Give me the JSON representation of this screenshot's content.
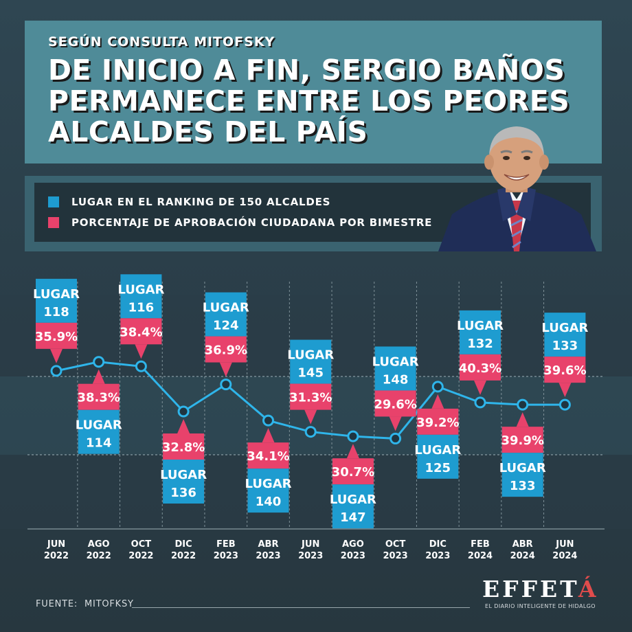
{
  "header": {
    "kicker": "SEGÚN CONSULTA MITOFSKY",
    "headline_lines": [
      "DE INICIO A FIN, SERGIO BAÑOS",
      "PERMANECE ENTRE LOS PEORES",
      "ALCALDES DEL PAÍS"
    ]
  },
  "legend": {
    "items": [
      {
        "label": "LUGAR EN EL RANKING DE 150 ALCALDES",
        "color": "#1e9cd0"
      },
      {
        "label": "PORCENTAJE DE APROBACIÓN CIUDADANA POR BIMESTRE",
        "color": "#e8426b"
      }
    ]
  },
  "colors": {
    "ranking": "#1e9cd0",
    "approval": "#e8426b",
    "line": "#2fb5ea",
    "background": "#2d424d"
  },
  "chart_data": {
    "type": "line",
    "rank_prefix": "LUGAR",
    "categories": [
      {
        "month": "JUN",
        "year": "2022"
      },
      {
        "month": "AGO",
        "year": "2022"
      },
      {
        "month": "OCT",
        "year": "2022"
      },
      {
        "month": "DIC",
        "year": "2022"
      },
      {
        "month": "FEB",
        "year": "2023"
      },
      {
        "month": "ABR",
        "year": "2023"
      },
      {
        "month": "JUN",
        "year": "2023"
      },
      {
        "month": "AGO",
        "year": "2023"
      },
      {
        "month": "OCT",
        "year": "2023"
      },
      {
        "month": "DIC",
        "year": "2023"
      },
      {
        "month": "FEB",
        "year": "2024"
      },
      {
        "month": "ABR",
        "year": "2024"
      },
      {
        "month": "JUN",
        "year": "2024"
      }
    ],
    "series": [
      {
        "name": "LUGAR EN EL RANKING DE 150 ALCALDES",
        "values": [
          118,
          114,
          116,
          136,
          124,
          140,
          145,
          147,
          148,
          125,
          132,
          133,
          133
        ]
      },
      {
        "name": "PORCENTAJE DE APROBACIÓN CIUDADANA POR BIMESTRE",
        "values": [
          "35.9%",
          "38.3%",
          "38.4%",
          "32.8%",
          "36.9%",
          "34.1%",
          "31.3%",
          "30.7%",
          "29.6%",
          "39.2%",
          "40.3%",
          "39.9%",
          "39.6%"
        ]
      }
    ],
    "label_side": [
      "above",
      "below",
      "above",
      "below",
      "above",
      "below",
      "above",
      "below",
      "above",
      "below",
      "above",
      "below",
      "above"
    ]
  },
  "footer": {
    "source_label": "FUENTE:",
    "source_value": "MITOFKSY",
    "brand_main": "EFFET",
    "brand_accent": "Á",
    "tagline": "EL DIARIO INTELIGENTE DE HIDALGO"
  }
}
